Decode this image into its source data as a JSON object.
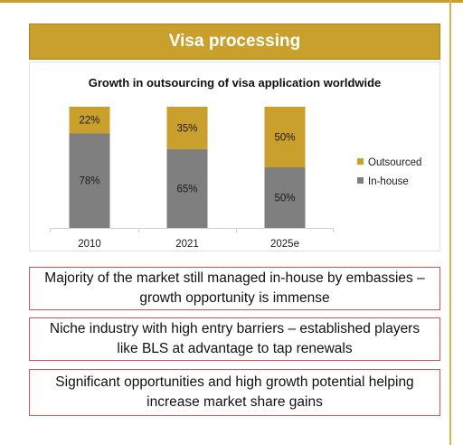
{
  "banner": {
    "title": "Visa processing"
  },
  "chart_data": {
    "type": "bar",
    "stacked": true,
    "title": "Growth in outsourcing of visa application worldwide",
    "categories": [
      "2010",
      "2021",
      "2025e"
    ],
    "series": [
      {
        "name": "In-house",
        "values": [
          78,
          65,
          50
        ],
        "labels": [
          "78%",
          "65%",
          "50%"
        ],
        "color": "#7f7f7f"
      },
      {
        "name": "Outsourced",
        "values": [
          22,
          35,
          50
        ],
        "labels": [
          "22%",
          "35%",
          "50%"
        ],
        "color": "#c9a02c"
      }
    ],
    "ylim": [
      0,
      100
    ],
    "legend_position": "right",
    "grid": false
  },
  "highlights": [
    {
      "text": "Majority of the market still managed in-house by embassies – growth opportunity is immense"
    },
    {
      "text": "Niche industry with high entry barriers – established players like BLS at advantage to tap renewals"
    },
    {
      "text": "Significant opportunities and high growth potential helping increase market share gains"
    }
  ]
}
